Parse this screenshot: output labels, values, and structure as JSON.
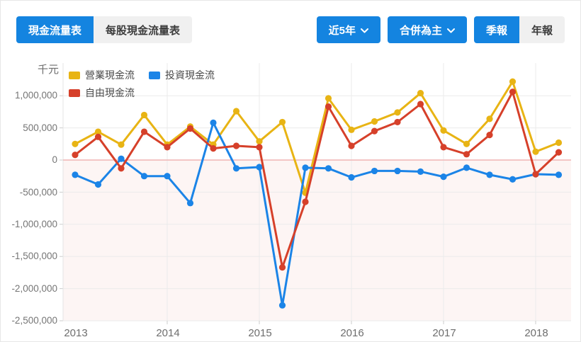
{
  "tabs": {
    "cash_flow_label": "現金流量表",
    "per_share_label": "每股現金流量表"
  },
  "controls": {
    "period_range_label": "近5年",
    "consolidation_label": "合併為主",
    "quarterly_label": "季報",
    "annual_label": "年報"
  },
  "chart": {
    "unit_label": "千元",
    "y_ticks": [
      "1,000,000",
      "500,000",
      "0",
      "-500,000",
      "-1,000,000",
      "-1,500,000",
      "-2,000,000",
      "-2,500,000"
    ],
    "x_ticks": [
      "2013",
      "2014",
      "2015",
      "2016",
      "2017",
      "2018"
    ]
  },
  "chart_data": {
    "type": "line",
    "title": "現金流量表 (季報, 合併為主, 近5年)",
    "ylabel": "千元",
    "ylim": [
      -2500000,
      1000000
    ],
    "grid": true,
    "legend_position": "top-left",
    "zero_line_color": "#f0b4b4",
    "negative_area_tint": "rgba(214,64,42,0.05)",
    "x": [
      "2013Q1",
      "2013Q2",
      "2013Q3",
      "2013Q4",
      "2014Q1",
      "2014Q2",
      "2014Q3",
      "2014Q4",
      "2015Q1",
      "2015Q2",
      "2015Q3",
      "2015Q4",
      "2016Q1",
      "2016Q2",
      "2016Q3",
      "2016Q4",
      "2017Q1",
      "2017Q2",
      "2017Q3",
      "2017Q4",
      "2018Q1",
      "2018Q2"
    ],
    "series": [
      {
        "name": "營業現金流",
        "color": "#e8b414",
        "values": [
          250000,
          440000,
          240000,
          700000,
          240000,
          520000,
          240000,
          760000,
          290000,
          590000,
          -510000,
          960000,
          470000,
          600000,
          740000,
          1040000,
          460000,
          250000,
          640000,
          1220000,
          130000,
          270000
        ]
      },
      {
        "name": "投資現金流",
        "color": "#1b84e7",
        "values": [
          -230000,
          -380000,
          20000,
          -250000,
          -250000,
          -670000,
          580000,
          -130000,
          -110000,
          -2260000,
          -120000,
          -130000,
          -270000,
          -170000,
          -170000,
          -180000,
          -260000,
          -120000,
          -230000,
          -300000,
          -220000,
          -230000
        ]
      },
      {
        "name": "自由現金流",
        "color": "#d6402a",
        "values": [
          80000,
          360000,
          -130000,
          440000,
          200000,
          490000,
          180000,
          220000,
          200000,
          -1670000,
          -650000,
          830000,
          220000,
          450000,
          590000,
          870000,
          200000,
          90000,
          390000,
          1060000,
          -220000,
          120000
        ]
      }
    ]
  }
}
